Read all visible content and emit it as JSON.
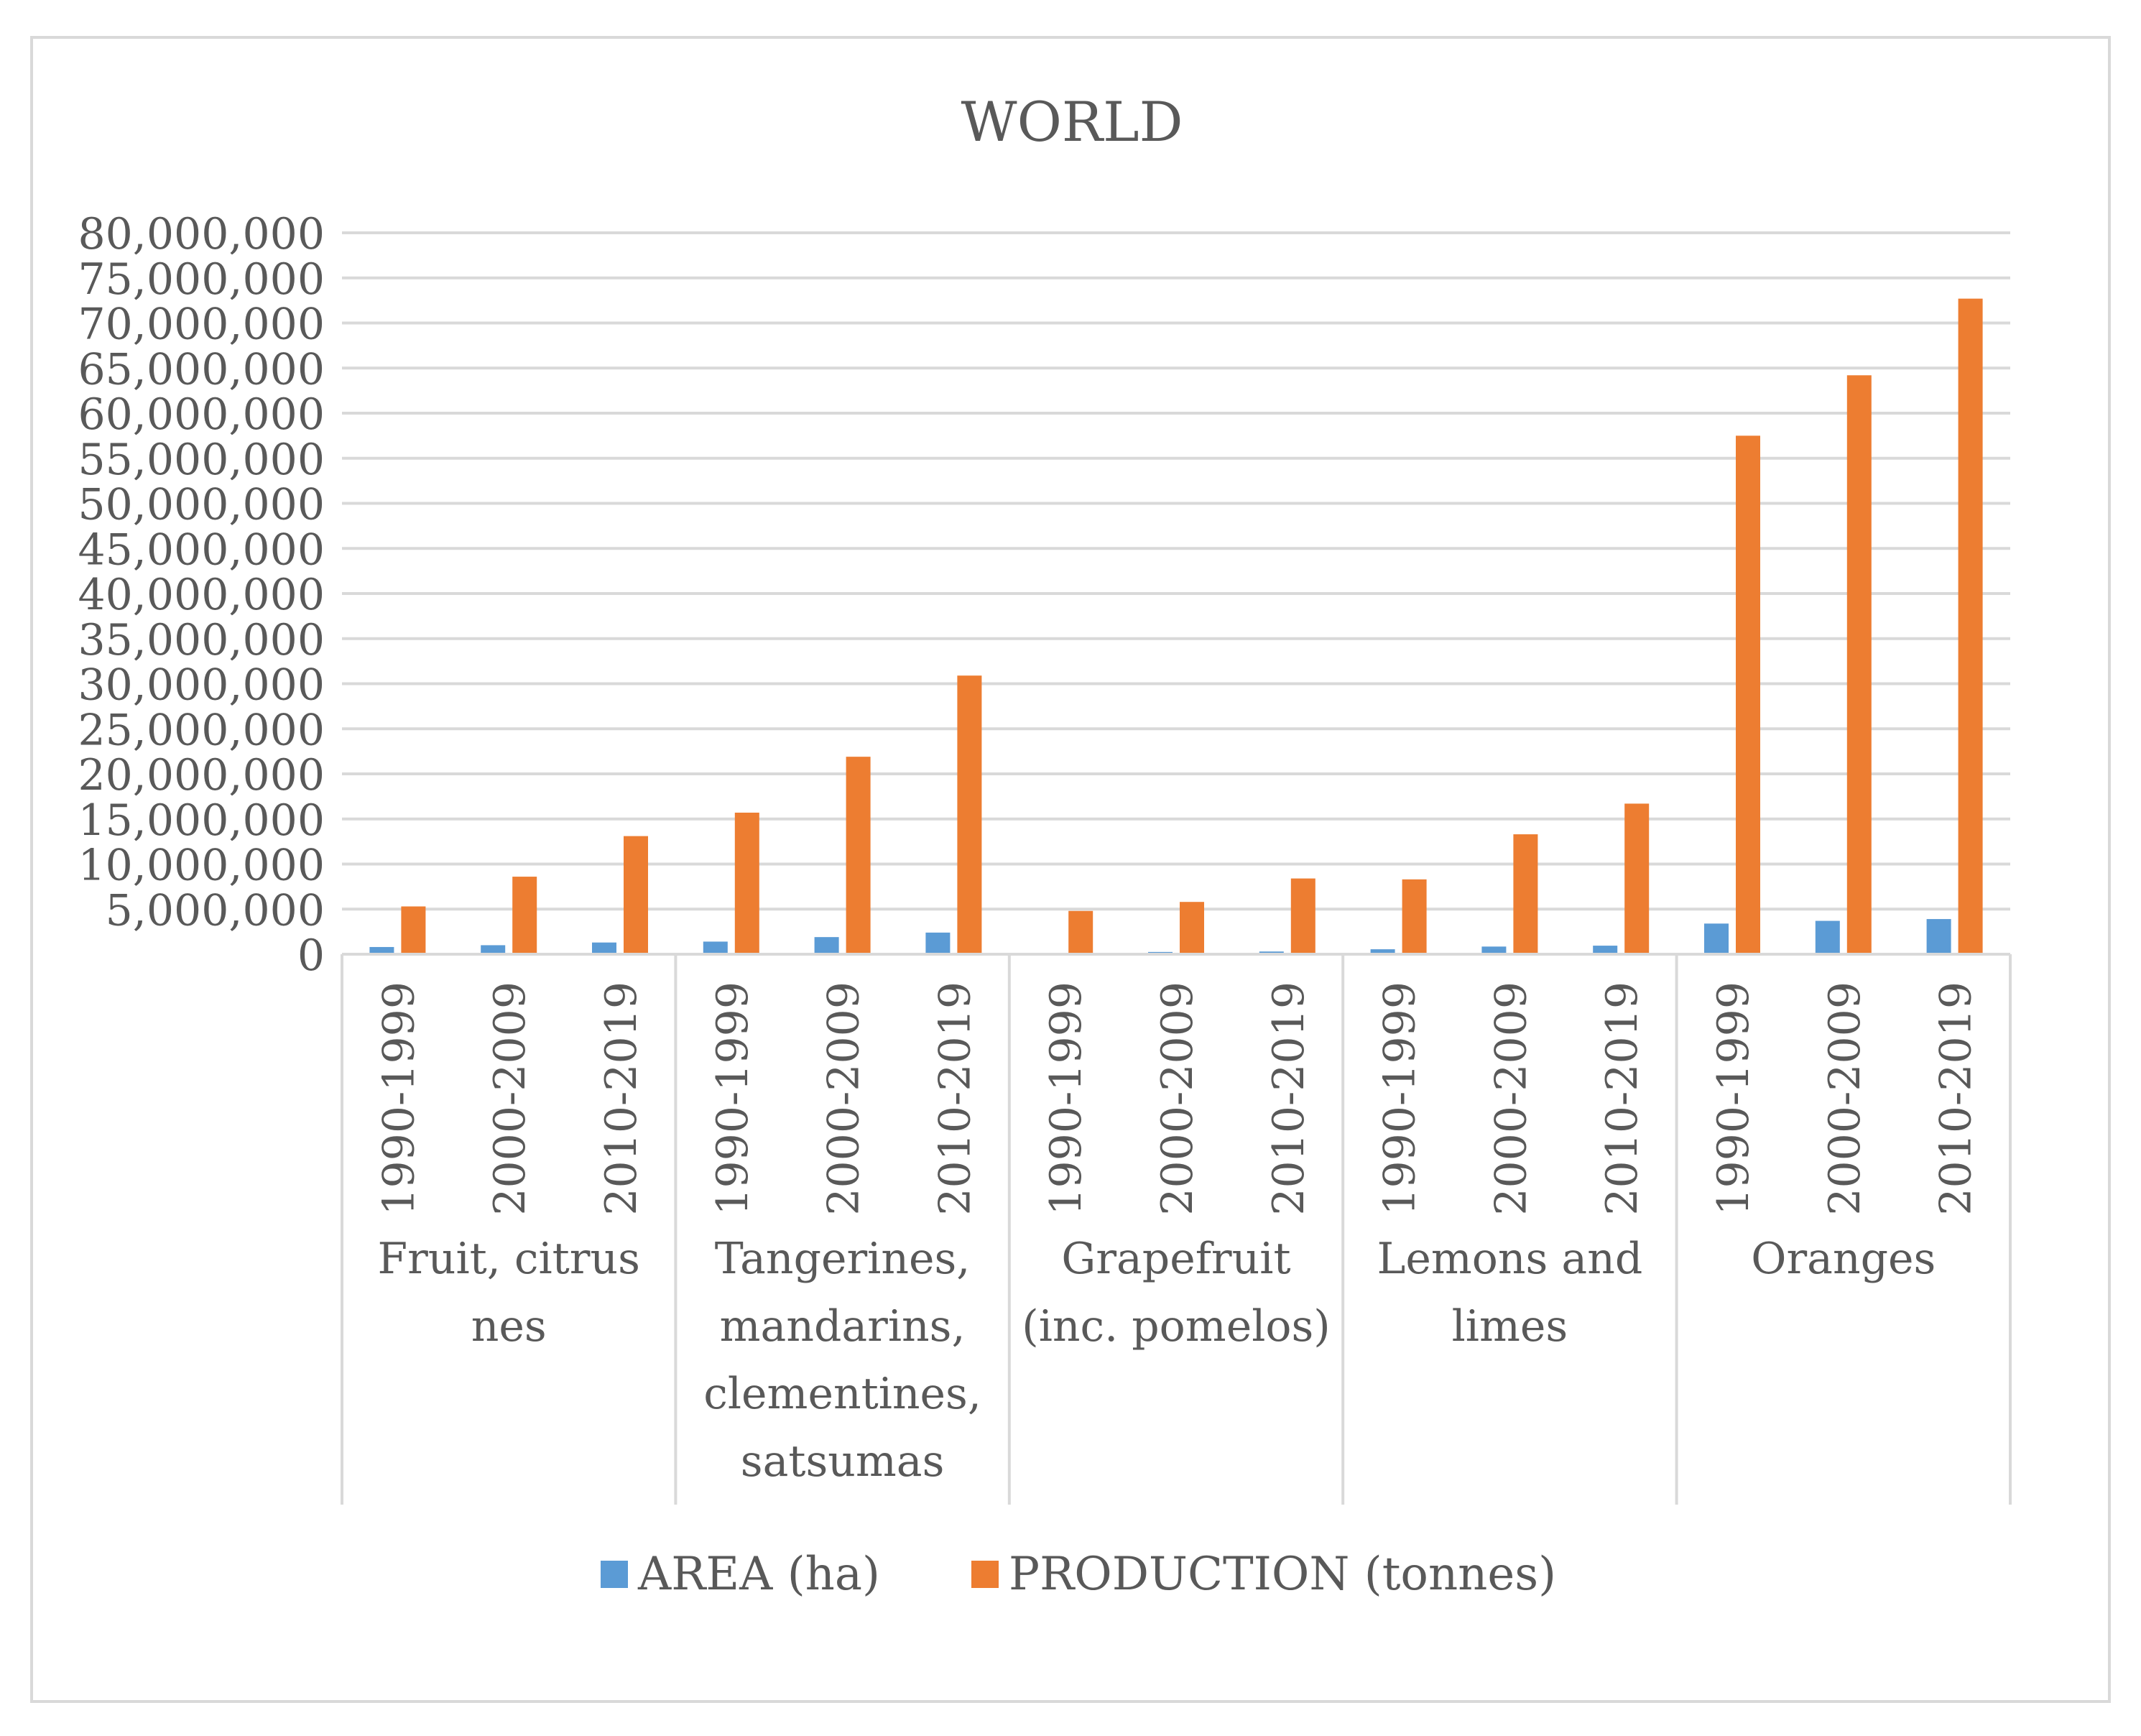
{
  "chart_data": {
    "type": "bar",
    "title": "WORLD",
    "xlabel": "",
    "ylabel": "",
    "ylim": [
      0,
      80000000
    ],
    "ytick_step": 5000000,
    "yticks": [
      "0",
      "5,000,000",
      "10,000,000",
      "15,000,000",
      "20,000,000",
      "25,000,000",
      "30,000,000",
      "35,000,000",
      "40,000,000",
      "45,000,000",
      "50,000,000",
      "55,000,000",
      "60,000,000",
      "65,000,000",
      "70,000,000",
      "75,000,000",
      "80,000,000"
    ],
    "grid": true,
    "legend_position": "bottom",
    "groups": [
      {
        "name_lines": [
          "Fruit, citrus",
          "nes"
        ],
        "categories": [
          "1990-1999",
          "2000-2009",
          "2010-2019"
        ]
      },
      {
        "name_lines": [
          "Tangerines,",
          "mandarins,",
          "clementines,",
          "satsumas"
        ],
        "categories": [
          "1990-1999",
          "2000-2009",
          "2010-2019"
        ]
      },
      {
        "name_lines": [
          "Grapefruit",
          "(inc. pomelos)"
        ],
        "categories": [
          "1990-1999",
          "2000-2009",
          "2010-2019"
        ]
      },
      {
        "name_lines": [
          "Lemons and",
          "limes"
        ],
        "categories": [
          "1990-1999",
          "2000-2009",
          "2010-2019"
        ]
      },
      {
        "name_lines": [
          "Oranges"
        ],
        "categories": [
          "1990-1999",
          "2000-2009",
          "2010-2019"
        ]
      }
    ],
    "series": [
      {
        "name": "AREA (ha)",
        "color": "#5b9bd5",
        "values": [
          800000,
          1000000,
          1300000,
          1400000,
          1900000,
          2400000,
          100000,
          250000,
          300000,
          550000,
          850000,
          950000,
          3400000,
          3700000,
          3900000
        ]
      },
      {
        "name": "PRODUCTION (tonnes)",
        "color": "#ed7d31",
        "values": [
          5300000,
          8600000,
          13100000,
          15700000,
          21900000,
          30900000,
          4800000,
          5800000,
          8400000,
          8300000,
          13300000,
          16700000,
          57500000,
          64200000,
          72700000
        ]
      }
    ]
  }
}
